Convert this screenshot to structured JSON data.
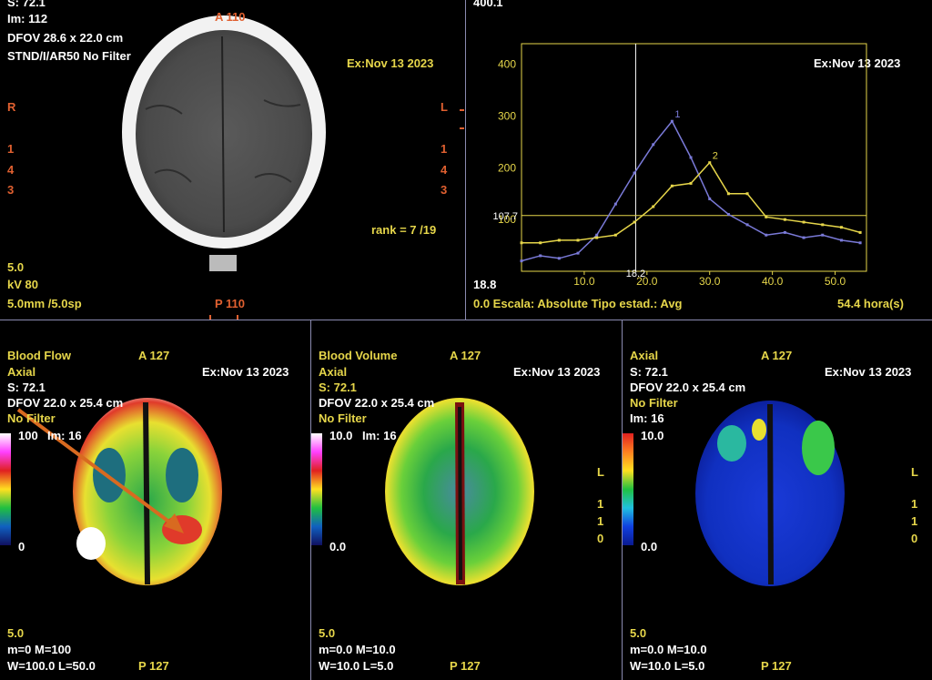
{
  "top_left": {
    "cut_line": "S: 72.1",
    "im": "Im: 112",
    "dfov": "DFOV 28.6 x 22.0 cm",
    "filter": "STND/I/AR50 No Filter",
    "orient_top": "A 110",
    "exam_date": "Ex:Nov 13 2023",
    "right_marker": "R",
    "left_marker": "L",
    "left_scale": [
      "1",
      "4",
      "3"
    ],
    "right_scale": [
      "1",
      "4",
      "3"
    ],
    "rank": "rank = 7 /19",
    "thickness": "5.0",
    "kv": "kV 80",
    "slice": "5.0mm /5.0sp",
    "orient_bottom": "P 110"
  },
  "top_right": {
    "corner_value": "400.1",
    "exam_date": "Ex:Nov 13 2023",
    "scale_line": "0.0 Escala: Absolute Tipo estad.: Avg",
    "duration": "54.4 hora(s)",
    "min_label": "18.8",
    "crosshair_y_label": "107.7",
    "crosshair_x_label": "18.2",
    "y_ticks": [
      "400",
      "300",
      "200",
      "100"
    ],
    "x_ticks": [
      "10.0",
      "20.0",
      "30.0",
      "40.0",
      "50.0"
    ]
  },
  "panels": [
    {
      "title": "Blood Flow",
      "orient_top": "A 127",
      "plane": "Axial",
      "exam_date": "Ex:Nov 13 2023",
      "dfov": "DFOV 22.0 x 25.4 cm",
      "filter": "No Filter",
      "scale_max": "100",
      "im": "Im: 16",
      "scale_min": "0",
      "thickness": "5.0",
      "mm": "m=0 M=100",
      "wl": "W=100.0 L=50.0",
      "orient_bottom": "P 127"
    },
    {
      "title": "Blood Volume",
      "orient_top": "A 127",
      "plane": "Axial",
      "exam_date": "Ex:Nov 13 2023",
      "cut": "S: 72.1",
      "dfov": "DFOV 22.0 x 25.4 cm",
      "filter": "No Filter",
      "scale_max": "10.0",
      "im": "Im: 16",
      "scale_min": "0.0",
      "thickness": "5.0",
      "mm": "m=0.0 M=10.0",
      "wl": "W=10.0 L=5.0",
      "orient_bottom": "P 127"
    },
    {
      "title": "Axial",
      "orient_top": "A 127",
      "exam_date": "Ex:Nov 13 2023",
      "cut": "S: 72.1",
      "dfov": "DFOV 22.0 x 25.4 cm",
      "filter": "No Filter",
      "im": "Im: 16",
      "scale_max": "10.0",
      "scale_min": "0.0",
      "thickness": "5.0",
      "mm": "m=0.0 M=10.0",
      "wl": "W=10.0 L=5.0",
      "orient_bottom": "P 127"
    }
  ],
  "panel1_extra": {
    "cut": "S: 72.1"
  },
  "right_edge_markers": [
    "L",
    "1",
    "1",
    "0"
  ],
  "chart_data": {
    "type": "line",
    "xlim": [
      0,
      55
    ],
    "ylim": [
      0,
      440
    ],
    "series": [
      {
        "name": "1",
        "color": "#7a7ad8",
        "x": [
          0,
          3,
          6,
          9,
          12,
          15,
          18,
          21,
          24,
          27,
          30,
          33,
          36,
          39,
          42,
          45,
          48,
          51,
          54
        ],
        "y": [
          20,
          30,
          25,
          35,
          70,
          130,
          190,
          245,
          290,
          220,
          140,
          110,
          90,
          70,
          75,
          65,
          70,
          60,
          55
        ]
      },
      {
        "name": "2",
        "color": "#e6d64a",
        "x": [
          0,
          3,
          6,
          9,
          12,
          15,
          18,
          21,
          24,
          27,
          30,
          33,
          36,
          39,
          42,
          45,
          48,
          51,
          54
        ],
        "y": [
          55,
          55,
          60,
          60,
          65,
          70,
          95,
          125,
          165,
          170,
          210,
          150,
          150,
          105,
          100,
          95,
          90,
          85,
          75
        ]
      }
    ]
  }
}
